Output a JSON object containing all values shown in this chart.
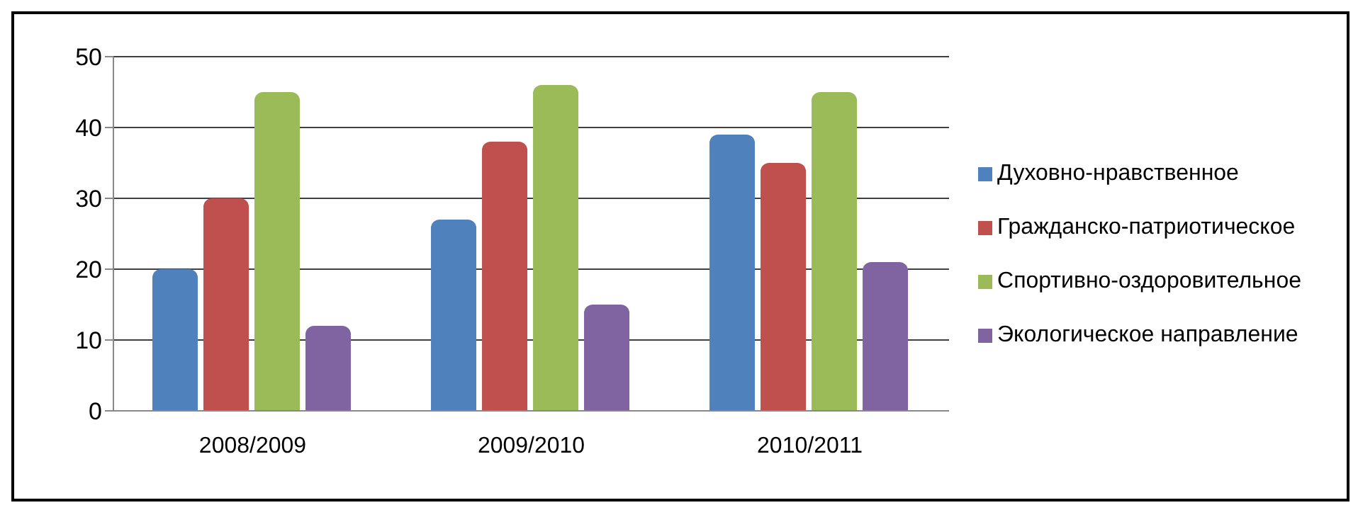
{
  "chart_data": {
    "type": "bar",
    "categories": [
      "2008/2009",
      "2009/2010",
      "2010/2011"
    ],
    "series": [
      {
        "name": "Духовно-нравственное",
        "color": "#4f81bd",
        "values": [
          20,
          27,
          39
        ]
      },
      {
        "name": "Гражданско-патриотическое",
        "color": "#c0504d",
        "values": [
          30,
          38,
          35
        ]
      },
      {
        "name": "Спортивно-оздоровительное",
        "color": "#9bbb59",
        "values": [
          45,
          46,
          45
        ]
      },
      {
        "name": "Экологическое направление",
        "color": "#8064a2",
        "values": [
          12,
          15,
          21
        ]
      }
    ],
    "ylim": [
      0,
      50
    ],
    "yticks": [
      0,
      10,
      20,
      30,
      40,
      50
    ],
    "grid": "y",
    "legend": "right"
  }
}
